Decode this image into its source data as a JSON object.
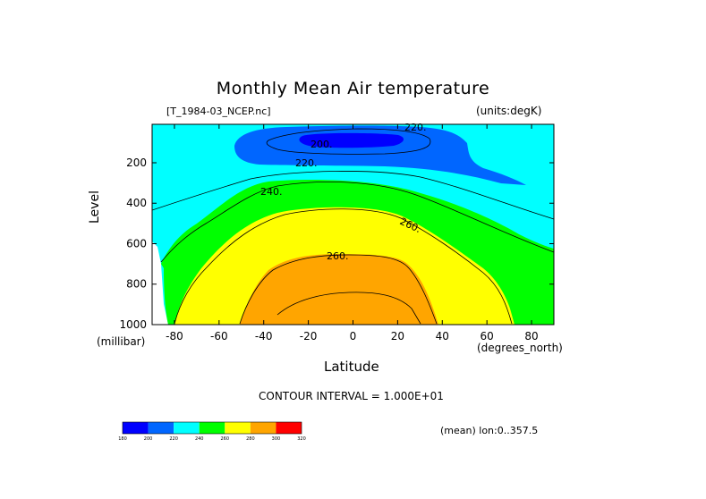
{
  "chart_data": {
    "type": "heatmap",
    "title": "Monthly Mean Air temperature",
    "file_label": "[T_1984-03_NCEP.nc]",
    "units_label": "(units:degK)",
    "xlabel": "Latitude",
    "x_unit": "(degrees_north)",
    "ylabel": "Level",
    "y_unit": "(millibar)",
    "xlim": [
      -90,
      90
    ],
    "ylim": [
      1000,
      10
    ],
    "x_ticks": [
      -80,
      -60,
      -40,
      -20,
      0,
      20,
      40,
      60,
      80
    ],
    "y_ticks": [
      200,
      400,
      600,
      800,
      1000
    ],
    "contour_interval_text": "CONTOUR INTERVAL = 1.000E+01",
    "mean_note": "(mean) lon:0..357.5",
    "colorbar": {
      "bounds": [
        180,
        200,
        220,
        240,
        260,
        280,
        300,
        320
      ],
      "colors": [
        "#0000ff",
        "#0066ff",
        "#00ffff",
        "#00ff00",
        "#ffff00",
        "#ffa500",
        "#ff0000"
      ]
    },
    "contour_labels": [
      "220.",
      "200.",
      "220.",
      "240.",
      "260.",
      "260."
    ]
  }
}
